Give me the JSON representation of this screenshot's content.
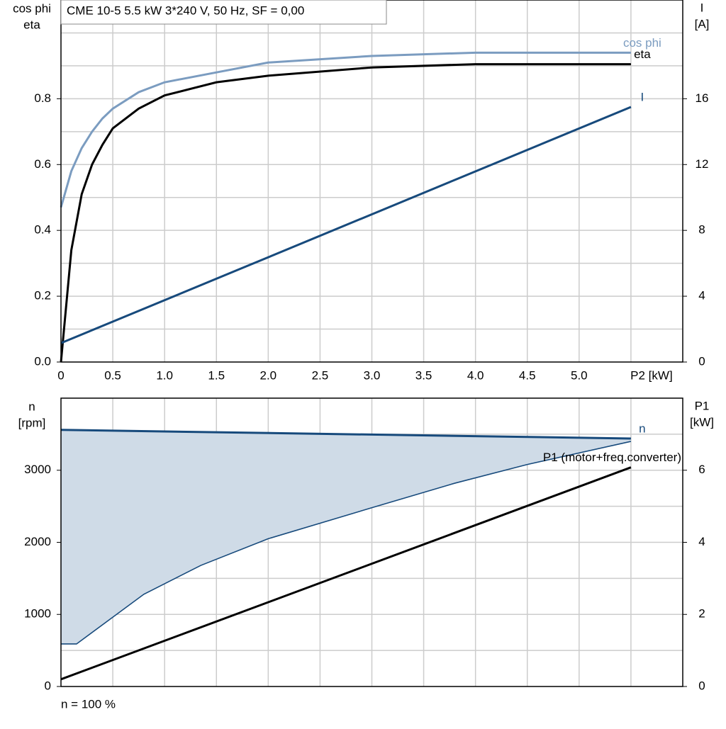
{
  "header": "CME 10-5   5.5 kW   3*240 V, 50 Hz, SF = 0,00",
  "footer": "n = 100 %",
  "chart_data": [
    {
      "type": "line",
      "ylabel": [
        "cos phi",
        "eta"
      ],
      "y2label": [
        "I",
        "[A]"
      ],
      "xlim": [
        0,
        6
      ],
      "ylim": [
        0,
        1.1
      ],
      "y2lim": [
        0,
        22
      ],
      "xticks": [
        0,
        0.5,
        {
          "value": 1,
          "label": "1.0"
        },
        1.5,
        {
          "value": 2,
          "label": "2.0"
        },
        2.5,
        {
          "value": 3,
          "label": "3.0"
        },
        3.5,
        {
          "value": 4,
          "label": "4.0"
        },
        4.5,
        {
          "value": 5,
          "label": "5.0"
        },
        {
          "value": 5.5,
          "label": "P2 [kW]"
        }
      ],
      "yticks": [
        {
          "value": 0,
          "label": "0.0"
        },
        0.2,
        0.4,
        0.6,
        0.8
      ],
      "ygrid": [
        0.1,
        0.3,
        0.5,
        0.7,
        0.9,
        1.0
      ],
      "y2ticks": [
        0,
        4,
        8,
        12,
        16
      ],
      "series": [
        {
          "name": "cos phi",
          "color": "#7b9cc0",
          "x": [
            0,
            0.1,
            0.2,
            0.3,
            0.4,
            0.5,
            0.75,
            1.0,
            1.5,
            2.0,
            3.0,
            4.0,
            5.5
          ],
          "values": [
            0.47,
            0.58,
            0.65,
            0.7,
            0.74,
            0.77,
            0.82,
            0.85,
            0.88,
            0.91,
            0.93,
            0.94,
            0.94
          ]
        },
        {
          "name": "eta",
          "color": "#000000",
          "x": [
            0,
            0.1,
            0.2,
            0.3,
            0.4,
            0.5,
            0.75,
            1.0,
            1.5,
            2.0,
            3.0,
            4.0,
            5.5
          ],
          "values": [
            0,
            0.34,
            0.51,
            0.6,
            0.66,
            0.71,
            0.77,
            0.81,
            0.85,
            0.87,
            0.895,
            0.905,
            0.905
          ]
        },
        {
          "name": "I",
          "color": "#174a7c",
          "axis": "y2",
          "x": [
            0,
            5.5
          ],
          "values": [
            1.15,
            15.5
          ]
        }
      ]
    },
    {
      "type": "line",
      "ylabel": [
        "n",
        "[rpm]"
      ],
      "y2label": [
        "P1",
        "[kW]"
      ],
      "xlim": [
        0,
        6
      ],
      "ylim": [
        0,
        4000
      ],
      "y2lim": [
        0,
        8
      ],
      "xgrid": [
        0.5,
        1,
        1.5,
        2,
        2.5,
        3,
        3.5,
        4,
        4.5,
        5,
        5.5
      ],
      "yticks": [
        0,
        1000,
        2000,
        3000
      ],
      "ygrid": [
        500,
        1500,
        2500,
        3500
      ],
      "y2ticks": [
        0,
        2,
        4,
        6
      ],
      "series": [
        {
          "name": "n",
          "color": "#174a7c",
          "fill": "#cfdbe7",
          "x": [
            0,
            5.5
          ],
          "values": [
            3560,
            3440
          ],
          "low_x": [
            0,
            0.15,
            0.8,
            1.35,
            2.0,
            3.0,
            3.8,
            4.5,
            5.5
          ],
          "low_values": [
            590,
            590,
            1280,
            1680,
            2050,
            2480,
            2820,
            3080,
            3400
          ]
        },
        {
          "name": "P1 (motor+freq.converter)",
          "color": "#000000",
          "axis": "y2",
          "x": [
            0,
            5.5
          ],
          "values": [
            0.2,
            6.08
          ]
        }
      ]
    }
  ]
}
